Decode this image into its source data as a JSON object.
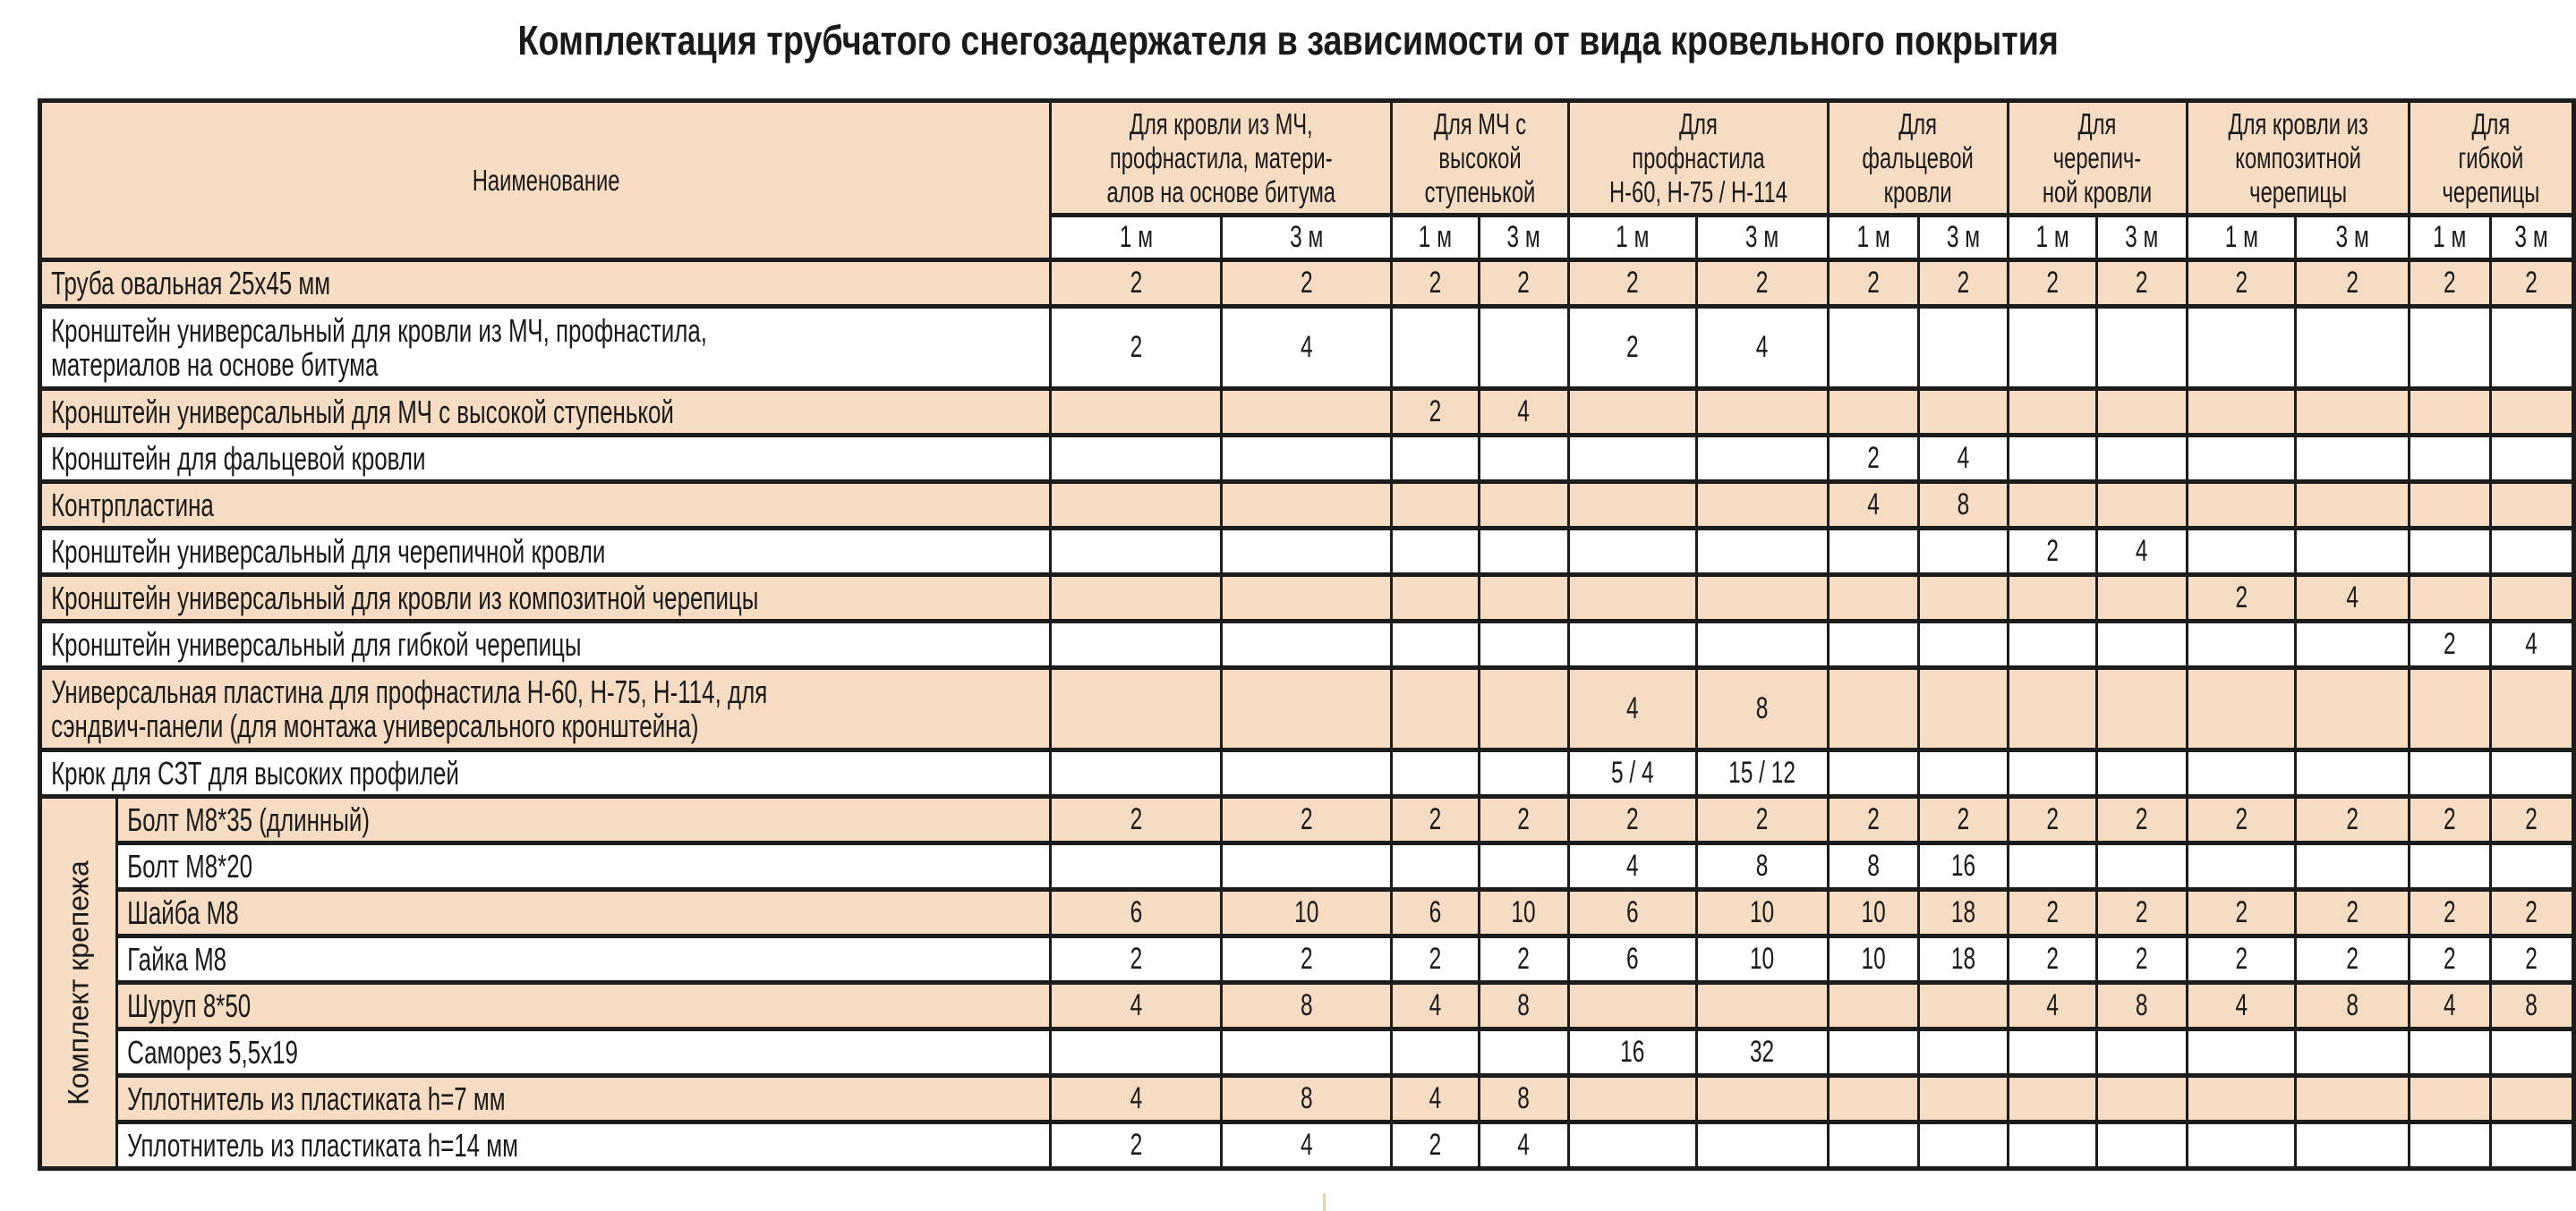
{
  "title": "Комплектация трубчатого снегозадержателя в зависимости от вида кровельного покрытия",
  "header": {
    "name_label": "Наименование",
    "groups": [
      {
        "lines": [
          "Для кровли из МЧ,",
          "профнастила, матери-",
          "алов на основе битума"
        ]
      },
      {
        "lines": [
          "Для МЧ с",
          "высокой",
          "ступенькой"
        ]
      },
      {
        "lines": [
          "Для",
          "профнастила",
          "Н-60, Н-75 / Н-114"
        ]
      },
      {
        "lines": [
          "Для",
          "фальцевой",
          "кровли"
        ]
      },
      {
        "lines": [
          "Для",
          "черепич-",
          "ной кровли"
        ]
      },
      {
        "lines": [
          "Для кровли из",
          "композитной",
          "черепицы"
        ]
      },
      {
        "lines": [
          "Для",
          "гибкой",
          "черепицы"
        ]
      }
    ],
    "lengths": [
      "1 м",
      "3 м"
    ]
  },
  "colors": {
    "row_beige": "#f5dcc2",
    "row_white": "#ffffff",
    "border": "#1c1c1c"
  },
  "rows": [
    {
      "name": "Труба овальная 25x45 мм",
      "values": [
        "2",
        "2",
        "2",
        "2",
        "2",
        "2",
        "2",
        "2",
        "2",
        "2",
        "2",
        "2",
        "2",
        "2"
      ]
    },
    {
      "name": "Кронштейн универсальный для кровли из МЧ, профнастила,\nматериалов на основе битума",
      "values": [
        "2",
        "4",
        "",
        "",
        "2",
        "4",
        "",
        "",
        "",
        "",
        "",
        "",
        "",
        ""
      ]
    },
    {
      "name": "Кронштейн универсальный для МЧ с высокой ступенькой",
      "values": [
        "",
        "",
        "2",
        "4",
        "",
        "",
        "",
        "",
        "",
        "",
        "",
        "",
        "",
        ""
      ]
    },
    {
      "name": "Кронштейн для фальцевой кровли",
      "values": [
        "",
        "",
        "",
        "",
        "",
        "",
        "2",
        "4",
        "",
        "",
        "",
        "",
        "",
        ""
      ]
    },
    {
      "name": "Контрпластина",
      "values": [
        "",
        "",
        "",
        "",
        "",
        "",
        "4",
        "8",
        "",
        "",
        "",
        "",
        "",
        ""
      ]
    },
    {
      "name": "Кронштейн универсальный для черепичной кровли",
      "values": [
        "",
        "",
        "",
        "",
        "",
        "",
        "",
        "",
        "2",
        "4",
        "",
        "",
        "",
        ""
      ]
    },
    {
      "name": "Кронштейн универсальный для кровли из композитной черепицы",
      "values": [
        "",
        "",
        "",
        "",
        "",
        "",
        "",
        "",
        "",
        "",
        "2",
        "4",
        "",
        ""
      ]
    },
    {
      "name": "Кронштейн универсальный для гибкой черепицы",
      "values": [
        "",
        "",
        "",
        "",
        "",
        "",
        "",
        "",
        "",
        "",
        "",
        "",
        "2",
        "4"
      ]
    },
    {
      "name": "Универсальная пластина для профнастила Н-60, Н-75, Н-114, для\nсэндвич-панели (для монтажа универсального кронштейна)",
      "values": [
        "",
        "",
        "",
        "",
        "4",
        "8",
        "",
        "",
        "",
        "",
        "",
        "",
        "",
        ""
      ]
    },
    {
      "name": "Крюк для СЗТ для высоких профилей",
      "values": [
        "",
        "",
        "",
        "",
        "5 / 4",
        "15 / 12",
        "",
        "",
        "",
        "",
        "",
        "",
        "",
        ""
      ]
    }
  ],
  "fasteners": {
    "label": "Комплект крепежа",
    "rows": [
      {
        "name": "Болт М8*35 (длинный)",
        "values": [
          "2",
          "2",
          "2",
          "2",
          "2",
          "2",
          "2",
          "2",
          "2",
          "2",
          "2",
          "2",
          "2",
          "2"
        ]
      },
      {
        "name": "Болт М8*20",
        "values": [
          "",
          "",
          "",
          "",
          "4",
          "8",
          "8",
          "16",
          "",
          "",
          "",
          "",
          "",
          ""
        ]
      },
      {
        "name": "Шайба М8",
        "values": [
          "6",
          "10",
          "6",
          "10",
          "6",
          "10",
          "10",
          "18",
          "2",
          "2",
          "2",
          "2",
          "2",
          "2"
        ]
      },
      {
        "name": "Гайка М8",
        "values": [
          "2",
          "2",
          "2",
          "2",
          "6",
          "10",
          "10",
          "18",
          "2",
          "2",
          "2",
          "2",
          "2",
          "2"
        ]
      },
      {
        "name": "Шуруп 8*50",
        "values": [
          "4",
          "8",
          "4",
          "8",
          "",
          "",
          "",
          "",
          "4",
          "8",
          "4",
          "8",
          "4",
          "8"
        ]
      },
      {
        "name": "Саморез 5,5x19",
        "values": [
          "",
          "",
          "",
          "",
          "16",
          "32",
          "",
          "",
          "",
          "",
          "",
          "",
          "",
          ""
        ]
      },
      {
        "name": "Уплотнитель из пластиката h=7 мм",
        "values": [
          "4",
          "8",
          "4",
          "8",
          "",
          "",
          "",
          "",
          "",
          "",
          "",
          "",
          "",
          ""
        ]
      },
      {
        "name": "Уплотнитель из пластиката h=14 мм",
        "values": [
          "2",
          "4",
          "2",
          "4",
          "",
          "",
          "",
          "",
          "",
          "",
          "",
          "",
          "",
          ""
        ]
      }
    ]
  }
}
